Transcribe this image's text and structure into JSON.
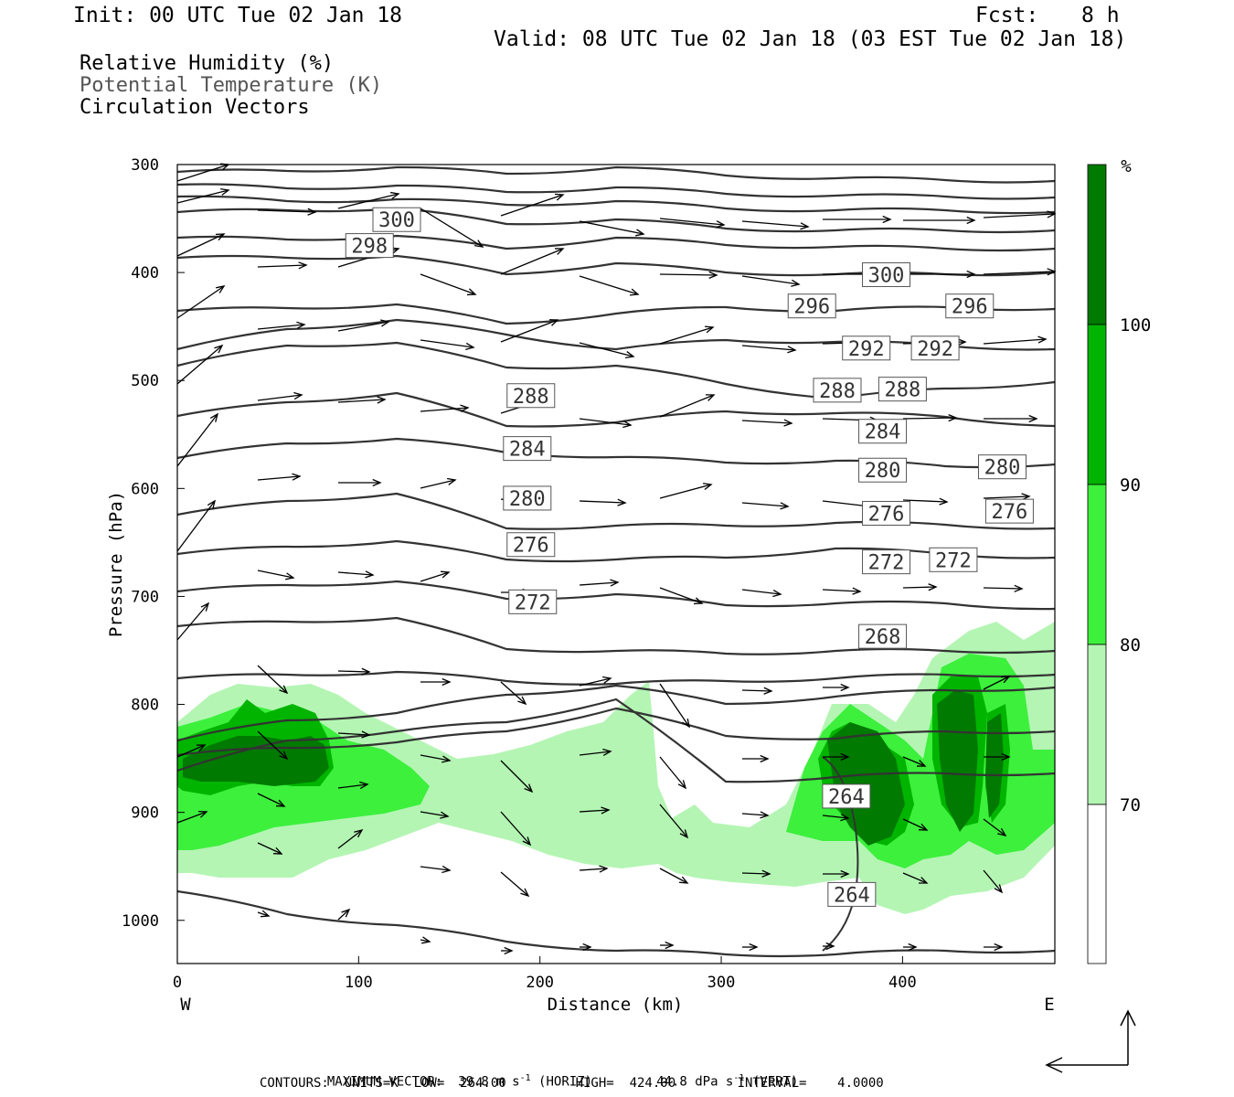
{
  "header": {
    "init": "Init: 00 UTC Tue 02 Jan 18",
    "fcst_label": "Fcst:",
    "fcst_value": "8 h",
    "valid": "Valid: 08 UTC Tue 02 Jan 18 (03 EST Tue 02 Jan 18)"
  },
  "legend": {
    "rh": "Relative Humidity (%)",
    "theta": "Potential Temperature (K)",
    "vectors": "Circulation Vectors"
  },
  "colorbar": {
    "unit": "%",
    "ticks": [
      "100",
      "90",
      "80",
      "70"
    ],
    "colors": [
      "#007a00",
      "#00b400",
      "#3cf03c",
      "#b4f5b4",
      "#ffffff"
    ]
  },
  "footer": {
    "line1_a": "MAXIMUM VECTOR:  39.8 m s",
    "line1_b": "-1",
    "line1_c": " (HORIZ)",
    "line1_d": "44.8 dPa s",
    "line1_e": "-1",
    "line1_f": " (VERT)",
    "line2": "CONTOURS:  UNITS=K  LOW=  264.00         HIGH=  424.00        INTERVAL=    4.0000"
  },
  "chart_data": {
    "type": "cross-section",
    "xlabel": "Distance (km)",
    "ylabel": "Pressure (hPa)",
    "x_ticks": [
      0,
      100,
      200,
      300,
      400
    ],
    "y_ticks": [
      300,
      400,
      500,
      600,
      700,
      800,
      900,
      1000
    ],
    "xlim": [
      0,
      484
    ],
    "ylim": [
      1040,
      300
    ],
    "x_end_labels": {
      "left": "W",
      "right": "E"
    },
    "isentropes_K": [
      264,
      268,
      272,
      276,
      280,
      284,
      288,
      292,
      296,
      298,
      300
    ],
    "contour_labels": [
      {
        "v": "300",
        "x": 121,
        "p": 351
      },
      {
        "v": "298",
        "x": 106,
        "p": 375
      },
      {
        "v": "300",
        "x": 391,
        "p": 402
      },
      {
        "v": "296",
        "x": 350,
        "p": 431
      },
      {
        "v": "296",
        "x": 437,
        "p": 431
      },
      {
        "v": "292",
        "x": 380,
        "p": 470
      },
      {
        "v": "292",
        "x": 418,
        "p": 470
      },
      {
        "v": "288",
        "x": 195,
        "p": 514
      },
      {
        "v": "288",
        "x": 364,
        "p": 509
      },
      {
        "v": "288",
        "x": 400,
        "p": 508
      },
      {
        "v": "284",
        "x": 193,
        "p": 563
      },
      {
        "v": "284",
        "x": 389,
        "p": 547
      },
      {
        "v": "280",
        "x": 193,
        "p": 609
      },
      {
        "v": "280",
        "x": 389,
        "p": 583
      },
      {
        "v": "280",
        "x": 455,
        "p": 580
      },
      {
        "v": "276",
        "x": 195,
        "p": 652
      },
      {
        "v": "276",
        "x": 391,
        "p": 623
      },
      {
        "v": "276",
        "x": 459,
        "p": 621
      },
      {
        "v": "272",
        "x": 196,
        "p": 705
      },
      {
        "v": "272",
        "x": 391,
        "p": 668
      },
      {
        "v": "272",
        "x": 428,
        "p": 666
      },
      {
        "v": "268",
        "x": 389,
        "p": 737
      },
      {
        "v": "264",
        "x": 369,
        "p": 885
      },
      {
        "v": "264",
        "x": 372,
        "p": 976
      }
    ],
    "rh_levels_percent": [
      70,
      80,
      90,
      100
    ],
    "max_vector_horiz": "39.8 m s-1",
    "max_vector_vert": "44.8 dPa s-1",
    "contour_low": 264.0,
    "contour_high": 424.0,
    "contour_interval": 4.0
  }
}
